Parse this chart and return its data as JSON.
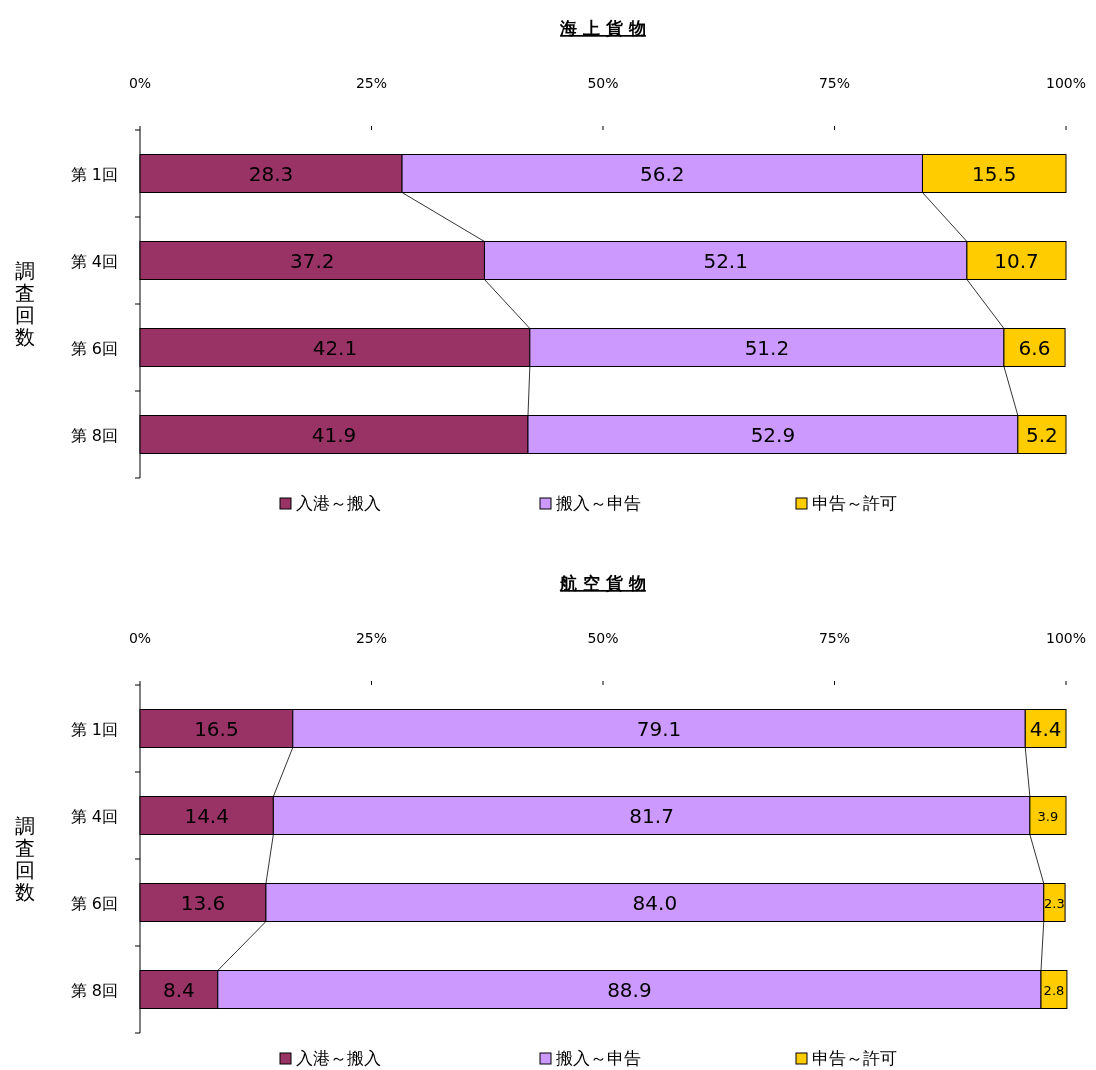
{
  "chart_data": [
    {
      "type": "bar",
      "orientation": "horizontal",
      "stacked": true,
      "title": "海 上 貨 物",
      "ylabel": "調査回数",
      "categories": [
        "第 1回",
        "第 4回",
        "第 6回",
        "第 8回"
      ],
      "series": [
        {
          "name": "入港～搬入",
          "color": "#993366",
          "values": [
            28.3,
            37.2,
            42.1,
            41.9
          ],
          "value_labels": [
            "28.3",
            "37.2",
            "42.1",
            "41.9"
          ]
        },
        {
          "name": "搬入～申告",
          "color": "#cc99ff",
          "values": [
            56.2,
            52.1,
            51.2,
            52.9
          ],
          "value_labels": [
            "56.2",
            "52.1",
            "51.2",
            "52.9"
          ]
        },
        {
          "name": "申告～許可",
          "color": "#ffcc00",
          "values": [
            15.5,
            10.7,
            6.6,
            5.2
          ],
          "value_labels": [
            "15.5",
            "10.7",
            "6.6",
            "5.2"
          ]
        }
      ],
      "xlim": [
        0,
        100
      ],
      "xticks": [
        {
          "value": 0,
          "label": "0%"
        },
        {
          "value": 25,
          "label": "25%"
        },
        {
          "value": 50,
          "label": "50%"
        },
        {
          "value": 75,
          "label": "75%"
        },
        {
          "value": 100,
          "label": "100%"
        }
      ],
      "legend": "bottom"
    },
    {
      "type": "bar",
      "orientation": "horizontal",
      "stacked": true,
      "title": "航 空 貨 物",
      "ylabel": "調査回数",
      "categories": [
        "第 1回",
        "第 4回",
        "第 6回",
        "第 8回"
      ],
      "series": [
        {
          "name": "入港～搬入",
          "color": "#993366",
          "values": [
            16.5,
            14.4,
            13.6,
            8.4
          ],
          "value_labels": [
            "16.5",
            "14.4",
            "13.6",
            "8.4"
          ]
        },
        {
          "name": "搬入～申告",
          "color": "#cc99ff",
          "values": [
            79.1,
            81.7,
            84.0,
            88.9
          ],
          "value_labels": [
            "79.1",
            "81.7",
            "84.0",
            "88.9"
          ]
        },
        {
          "name": "申告～許可",
          "color": "#ffcc00",
          "values": [
            4.4,
            3.9,
            2.3,
            2.8
          ],
          "value_labels": [
            "4.4",
            "3.9",
            "2.3",
            "2.8"
          ]
        }
      ],
      "xlim": [
        0,
        100
      ],
      "xticks": [
        {
          "value": 0,
          "label": "0%"
        },
        {
          "value": 25,
          "label": "25%"
        },
        {
          "value": 50,
          "label": "50%"
        },
        {
          "value": 75,
          "label": "75%"
        },
        {
          "value": 100,
          "label": "100%"
        }
      ],
      "legend": "bottom"
    }
  ]
}
